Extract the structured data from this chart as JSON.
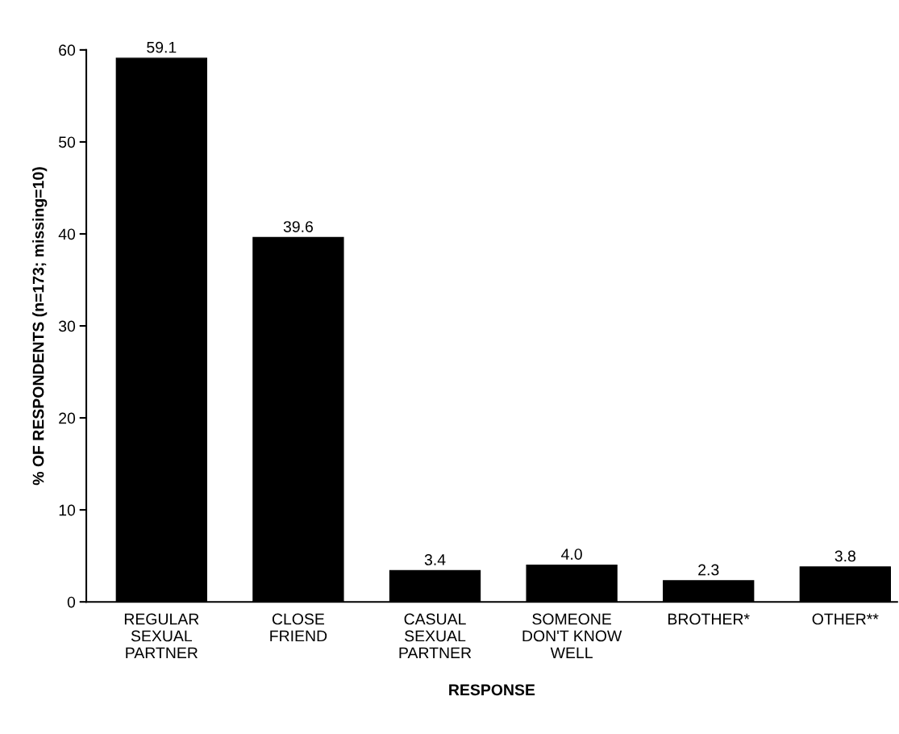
{
  "chart_data": {
    "type": "bar",
    "xlabel": "RESPONSE",
    "ylabel": "% OF RESPONDENTS (n=173; missing=10)",
    "categories": [
      "REGULAR\nSEXUAL\nPARTNER",
      "CLOSE\nFRIEND",
      "CASUAL\nSEXUAL\nPARTNER",
      "SOMEONE\nDON'T KNOW\nWELL",
      "BROTHER*",
      "OTHER**"
    ],
    "values": [
      59.1,
      39.6,
      3.4,
      4.0,
      2.3,
      3.8
    ],
    "value_labels": [
      "59.1",
      "39.6",
      "3.4",
      "4.0",
      "2.3",
      "3.8"
    ],
    "color": "#000000",
    "ylim": [
      0,
      60
    ],
    "yticks": [
      0,
      10,
      20,
      30,
      40,
      50,
      60
    ],
    "grid": false,
    "legend": false
  }
}
